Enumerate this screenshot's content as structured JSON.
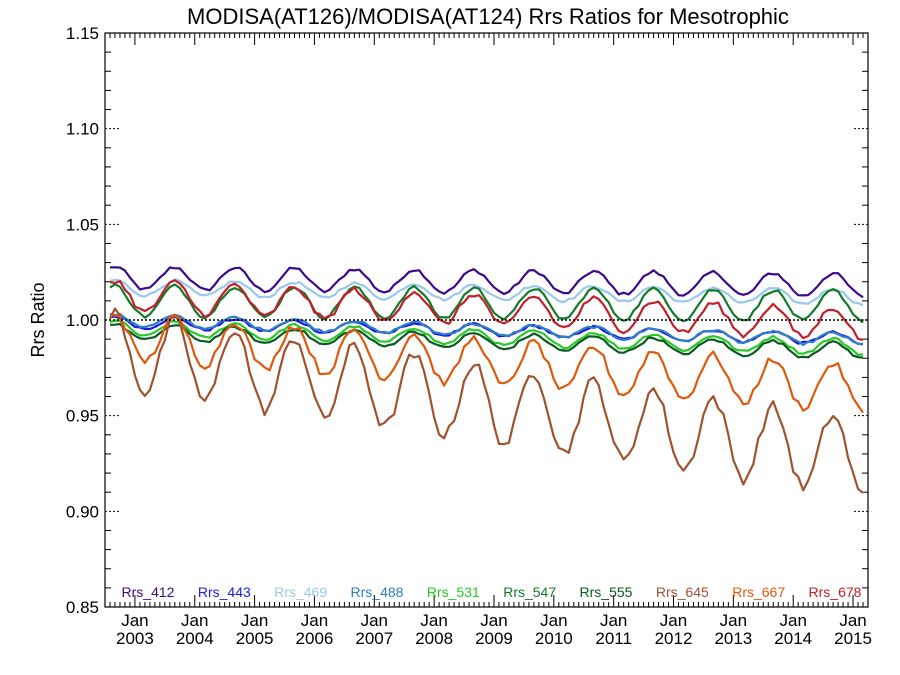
{
  "chart_data": {
    "type": "line",
    "title": "MODISA(AT126)/MODISA(AT124)  Rrs Ratios for Mesotrophic",
    "xlabel": "",
    "ylabel": "Rrs Ratio",
    "ylim": [
      0.85,
      1.15
    ],
    "xlim": [
      "2002-07",
      "2015-04"
    ],
    "yticks": [
      "0.85",
      "0.90",
      "0.95",
      "1.00",
      "1.05",
      "1.10",
      "1.15"
    ],
    "xticks": [
      {
        "month": "Jan",
        "year": "2003",
        "x": "2003-01"
      },
      {
        "month": "Jan",
        "year": "2004",
        "x": "2004-01"
      },
      {
        "month": "Jan",
        "year": "2005",
        "x": "2005-01"
      },
      {
        "month": "Jan",
        "year": "2006",
        "x": "2006-01"
      },
      {
        "month": "Jan",
        "year": "2007",
        "x": "2007-01"
      },
      {
        "month": "Jan",
        "year": "2008",
        "x": "2008-01"
      },
      {
        "month": "Jan",
        "year": "2009",
        "x": "2009-01"
      },
      {
        "month": "Jan",
        "year": "2010",
        "x": "2010-01"
      },
      {
        "month": "Jan",
        "year": "2011",
        "x": "2011-01"
      },
      {
        "month": "Jan",
        "year": "2012",
        "x": "2012-01"
      },
      {
        "month": "Jan",
        "year": "2013",
        "x": "2013-01"
      },
      {
        "month": "Jan",
        "year": "2014",
        "x": "2014-01"
      },
      {
        "month": "Jan",
        "year": "2015",
        "x": "2015-01"
      }
    ],
    "reference_line": 1.0,
    "grid": false,
    "legend_position": "bottom",
    "series": [
      {
        "name": "Rrs_412",
        "color": "#3a0a8c",
        "base": 1.022,
        "amp": 0.006,
        "decay": 0.0003,
        "noise": 0.002
      },
      {
        "name": "Rrs_443",
        "color": "#1a1ae6",
        "base": 0.999,
        "amp": 0.003,
        "decay": 0.0007,
        "noise": 0.0015
      },
      {
        "name": "Rrs_469",
        "color": "#99c8e8",
        "base": 1.017,
        "amp": 0.004,
        "decay": 0.0004,
        "noise": 0.0015
      },
      {
        "name": "Rrs_488",
        "color": "#2f7fc4",
        "base": 1.0,
        "amp": 0.003,
        "decay": 0.0008,
        "noise": 0.0015
      },
      {
        "name": "Rrs_531",
        "color": "#28c828",
        "base": 0.996,
        "amp": 0.004,
        "decay": 0.0008,
        "noise": 0.0015
      },
      {
        "name": "Rrs_547",
        "color": "#137a2a",
        "base": 1.01,
        "amp": 0.008,
        "decay": 0.0002,
        "noise": 0.002
      },
      {
        "name": "Rrs_555",
        "color": "#0a5a22",
        "base": 0.994,
        "amp": 0.004,
        "decay": 0.0008,
        "noise": 0.0015
      },
      {
        "name": "Rrs_645",
        "color": "#a0522d",
        "base": 0.985,
        "amp": 0.02,
        "decay": 0.0045,
        "noise": 0.006
      },
      {
        "name": "Rrs_667",
        "color": "#e0580c",
        "base": 0.992,
        "amp": 0.012,
        "decay": 0.0022,
        "noise": 0.004
      },
      {
        "name": "Rrs_678",
        "color": "#c21f2a",
        "base": 1.013,
        "amp": 0.008,
        "decay": 0.0012,
        "noise": 0.003
      }
    ]
  }
}
